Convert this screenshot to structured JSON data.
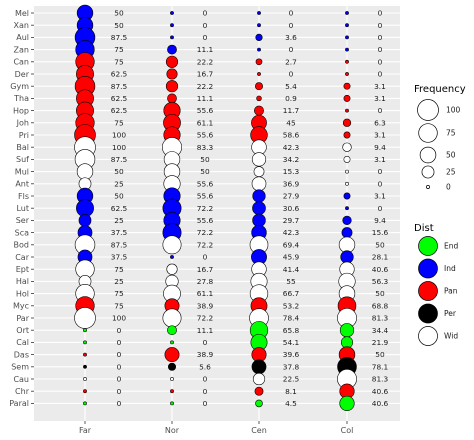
{
  "chart_data": {
    "type": "bubble-matrix",
    "columns": [
      "Far",
      "Nor",
      "Cen",
      "Col"
    ],
    "rows": [
      {
        "label": "Mel",
        "cells": [
          {
            "value": 50,
            "dist": "Ind"
          },
          {
            "value": 0,
            "dist": "Ind"
          },
          {
            "value": 0,
            "dist": "Ind"
          },
          {
            "value": 0,
            "dist": "Ind"
          }
        ]
      },
      {
        "label": "Xan",
        "cells": [
          {
            "value": 50,
            "dist": "Ind"
          },
          {
            "value": 0,
            "dist": "Ind"
          },
          {
            "value": 0,
            "dist": "Ind"
          },
          {
            "value": 0,
            "dist": "Ind"
          }
        ]
      },
      {
        "label": "Aul",
        "cells": [
          {
            "value": 87.5,
            "dist": "Ind"
          },
          {
            "value": 0,
            "dist": "Ind"
          },
          {
            "value": 3.6,
            "dist": "Ind"
          },
          {
            "value": 0,
            "dist": "Ind"
          }
        ]
      },
      {
        "label": "Zan",
        "cells": [
          {
            "value": 75,
            "dist": "Ind"
          },
          {
            "value": 11.1,
            "dist": "Ind"
          },
          {
            "value": 0,
            "dist": "Ind"
          },
          {
            "value": 0,
            "dist": "Ind"
          }
        ]
      },
      {
        "label": "Can",
        "cells": [
          {
            "value": 75,
            "dist": "Pan"
          },
          {
            "value": 22.2,
            "dist": "Pan"
          },
          {
            "value": 2.7,
            "dist": "Pan"
          },
          {
            "value": 0,
            "dist": "Pan"
          }
        ]
      },
      {
        "label": "Der",
        "cells": [
          {
            "value": 62.5,
            "dist": "Pan"
          },
          {
            "value": 16.7,
            "dist": "Pan"
          },
          {
            "value": 0,
            "dist": "Pan"
          },
          {
            "value": 0,
            "dist": "Pan"
          }
        ]
      },
      {
        "label": "Gym",
        "cells": [
          {
            "value": 87.5,
            "dist": "Pan"
          },
          {
            "value": 22.2,
            "dist": "Pan"
          },
          {
            "value": 5.4,
            "dist": "Pan"
          },
          {
            "value": 3.1,
            "dist": "Pan"
          }
        ]
      },
      {
        "label": "Tha",
        "cells": [
          {
            "value": 62.5,
            "dist": "Pan"
          },
          {
            "value": 11.1,
            "dist": "Pan"
          },
          {
            "value": 0.9,
            "dist": "Pan"
          },
          {
            "value": 3.1,
            "dist": "Pan"
          }
        ]
      },
      {
        "label": "Hop",
        "cells": [
          {
            "value": 62.5,
            "dist": "Pan"
          },
          {
            "value": 55.6,
            "dist": "Pan"
          },
          {
            "value": 11.7,
            "dist": "Pan"
          },
          {
            "value": 0,
            "dist": "Pan"
          }
        ]
      },
      {
        "label": "Joh",
        "cells": [
          {
            "value": 75,
            "dist": "Pan"
          },
          {
            "value": 61.1,
            "dist": "Pan"
          },
          {
            "value": 45,
            "dist": "Pan"
          },
          {
            "value": 6.3,
            "dist": "Pan"
          }
        ]
      },
      {
        "label": "Pri",
        "cells": [
          {
            "value": 100,
            "dist": "Pan"
          },
          {
            "value": 55.6,
            "dist": "Pan"
          },
          {
            "value": 58.6,
            "dist": "Pan"
          },
          {
            "value": 3.1,
            "dist": "Pan"
          }
        ]
      },
      {
        "label": "Bal",
        "cells": [
          {
            "value": 100,
            "dist": "Wid"
          },
          {
            "value": 83.3,
            "dist": "Wid"
          },
          {
            "value": 42.3,
            "dist": "Wid"
          },
          {
            "value": 9.4,
            "dist": "Wid"
          }
        ]
      },
      {
        "label": "Suf",
        "cells": [
          {
            "value": 87.5,
            "dist": "Wid"
          },
          {
            "value": 50,
            "dist": "Wid"
          },
          {
            "value": 34.2,
            "dist": "Wid"
          },
          {
            "value": 3.1,
            "dist": "Wid"
          }
        ]
      },
      {
        "label": "Mul",
        "cells": [
          {
            "value": 50,
            "dist": "Wid"
          },
          {
            "value": 50,
            "dist": "Wid"
          },
          {
            "value": 15.3,
            "dist": "Wid"
          },
          {
            "value": 0,
            "dist": "Wid"
          }
        ]
      },
      {
        "label": "Ant",
        "cells": [
          {
            "value": 25,
            "dist": "Wid"
          },
          {
            "value": 55.6,
            "dist": "Wid"
          },
          {
            "value": 36.9,
            "dist": "Wid"
          },
          {
            "value": 0,
            "dist": "Wid"
          }
        ]
      },
      {
        "label": "Fls",
        "cells": [
          {
            "value": 50,
            "dist": "Ind"
          },
          {
            "value": 55.6,
            "dist": "Ind"
          },
          {
            "value": 27.9,
            "dist": "Ind"
          },
          {
            "value": 3.1,
            "dist": "Ind"
          }
        ]
      },
      {
        "label": "Lut",
        "cells": [
          {
            "value": 62.5,
            "dist": "Ind"
          },
          {
            "value": 72.2,
            "dist": "Ind"
          },
          {
            "value": 30.6,
            "dist": "Ind"
          },
          {
            "value": 0,
            "dist": "Ind"
          }
        ]
      },
      {
        "label": "Ser",
        "cells": [
          {
            "value": 25,
            "dist": "Ind"
          },
          {
            "value": 55.6,
            "dist": "Ind"
          },
          {
            "value": 29.7,
            "dist": "Ind"
          },
          {
            "value": 9.4,
            "dist": "Ind"
          }
        ]
      },
      {
        "label": "Sca",
        "cells": [
          {
            "value": 37.5,
            "dist": "Ind"
          },
          {
            "value": 72.2,
            "dist": "Ind"
          },
          {
            "value": 42.3,
            "dist": "Ind"
          },
          {
            "value": 15.6,
            "dist": "Ind"
          }
        ]
      },
      {
        "label": "Bod",
        "cells": [
          {
            "value": 87.5,
            "dist": "Wid"
          },
          {
            "value": 72.2,
            "dist": "Wid"
          },
          {
            "value": 69.4,
            "dist": "Wid"
          },
          {
            "value": 50,
            "dist": "Wid"
          }
        ]
      },
      {
        "label": "Car",
        "cells": [
          {
            "value": 37.5,
            "dist": "Ind"
          },
          {
            "value": 0,
            "dist": "Ind"
          },
          {
            "value": 45.9,
            "dist": "Ind"
          },
          {
            "value": 28.1,
            "dist": "Ind"
          }
        ]
      },
      {
        "label": "Ept",
        "cells": [
          {
            "value": 75,
            "dist": "Wid"
          },
          {
            "value": 16.7,
            "dist": "Wid"
          },
          {
            "value": 41.4,
            "dist": "Wid"
          },
          {
            "value": 40.6,
            "dist": "Wid"
          }
        ]
      },
      {
        "label": "Hal",
        "cells": [
          {
            "value": 25,
            "dist": "Wid"
          },
          {
            "value": 27.8,
            "dist": "Wid"
          },
          {
            "value": 55,
            "dist": "Wid"
          },
          {
            "value": 56.3,
            "dist": "Wid"
          }
        ]
      },
      {
        "label": "Hol",
        "cells": [
          {
            "value": 75,
            "dist": "Wid"
          },
          {
            "value": 61.1,
            "dist": "Wid"
          },
          {
            "value": 66.7,
            "dist": "Wid"
          },
          {
            "value": 50,
            "dist": "Wid"
          }
        ]
      },
      {
        "label": "Myc",
        "cells": [
          {
            "value": 75,
            "dist": "Pan"
          },
          {
            "value": 38.9,
            "dist": "Pan"
          },
          {
            "value": 53.2,
            "dist": "Pan"
          },
          {
            "value": 68.8,
            "dist": "Pan"
          }
        ]
      },
      {
        "label": "Par",
        "cells": [
          {
            "value": 100,
            "dist": "Wid"
          },
          {
            "value": 72.2,
            "dist": "Wid"
          },
          {
            "value": 78.4,
            "dist": "Wid"
          },
          {
            "value": 81.3,
            "dist": "Wid"
          }
        ]
      },
      {
        "label": "Ort",
        "cells": [
          {
            "value": 0,
            "dist": "End"
          },
          {
            "value": 11.1,
            "dist": "End"
          },
          {
            "value": 65.8,
            "dist": "End"
          },
          {
            "value": 34.4,
            "dist": "End"
          }
        ]
      },
      {
        "label": "Cal",
        "cells": [
          {
            "value": 0,
            "dist": "End"
          },
          {
            "value": 0,
            "dist": "End"
          },
          {
            "value": 54.1,
            "dist": "End"
          },
          {
            "value": 21.9,
            "dist": "End"
          }
        ]
      },
      {
        "label": "Das",
        "cells": [
          {
            "value": 0,
            "dist": "Pan"
          },
          {
            "value": 38.9,
            "dist": "Pan"
          },
          {
            "value": 39.6,
            "dist": "Pan"
          },
          {
            "value": 50,
            "dist": "Pan"
          }
        ]
      },
      {
        "label": "Sem",
        "cells": [
          {
            "value": 0,
            "dist": "Per"
          },
          {
            "value": 5.6,
            "dist": "Per"
          },
          {
            "value": 37.8,
            "dist": "Per"
          },
          {
            "value": 78.1,
            "dist": "Per"
          }
        ]
      },
      {
        "label": "Cau",
        "cells": [
          {
            "value": 0,
            "dist": "Wid"
          },
          {
            "value": 0,
            "dist": "Wid"
          },
          {
            "value": 22.5,
            "dist": "Wid"
          },
          {
            "value": 81.3,
            "dist": "Wid"
          }
        ]
      },
      {
        "label": "Chr",
        "cells": [
          {
            "value": 0,
            "dist": "Pan"
          },
          {
            "value": 0,
            "dist": "Pan"
          },
          {
            "value": 8.1,
            "dist": "Pan"
          },
          {
            "value": 40.6,
            "dist": "Pan"
          }
        ]
      },
      {
        "label": "Paral",
        "cells": [
          {
            "value": 0,
            "dist": "End"
          },
          {
            "value": 0,
            "dist": "End"
          },
          {
            "value": 4.5,
            "dist": "End"
          },
          {
            "value": 40.6,
            "dist": "End"
          }
        ]
      }
    ],
    "size_legend": {
      "title": "Frequency",
      "values": [
        100,
        75,
        50,
        25,
        0
      ]
    },
    "color_legend": {
      "title": "Dist",
      "entries": [
        {
          "label": "End",
          "color": "#00ff00"
        },
        {
          "label": "Ind",
          "color": "#0000ff"
        },
        {
          "label": "Pan",
          "color": "#ff0000"
        },
        {
          "label": "Per",
          "color": "#000000"
        },
        {
          "label": "Wid",
          "color": "#ffffff"
        }
      ]
    },
    "panel_background": "#ebebeb",
    "grid": true,
    "legend_position": "right"
  }
}
